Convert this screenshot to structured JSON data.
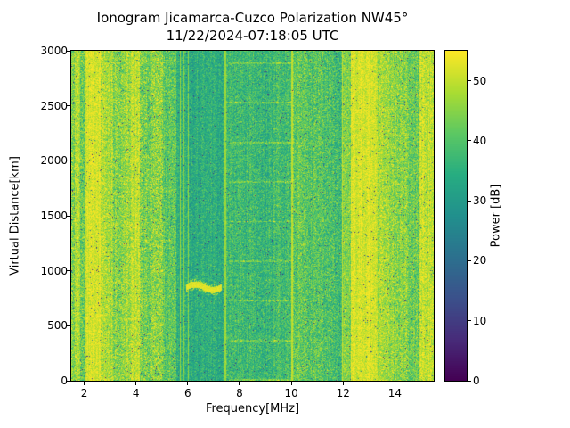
{
  "chart_data": {
    "type": "heatmap",
    "title": "Ionogram Jicamarca-Cuzco Polarization NW45°",
    "subtitle": "11/22/2024-07:18:05 UTC",
    "xlabel": "Frequency[MHz]",
    "ylabel": "Virtual Distance[km]",
    "xlim": [
      1.5,
      15.5
    ],
    "ylim": [
      0,
      3000
    ],
    "xticks": [
      2,
      4,
      6,
      8,
      10,
      12,
      14
    ],
    "yticks": [
      0,
      500,
      1000,
      1500,
      2000,
      2500,
      3000
    ],
    "grid": false,
    "colorbar": {
      "label": "Power [dB]",
      "min": 0,
      "max": 55,
      "ticks": [
        0,
        10,
        20,
        30,
        40,
        50
      ],
      "colormap": "viridis",
      "position": "right"
    },
    "bands": [
      {
        "f0": 1.5,
        "f1": 1.65,
        "mean": 44,
        "std": 5
      },
      {
        "f0": 1.65,
        "f1": 1.85,
        "mean": 48,
        "std": 4
      },
      {
        "f0": 1.85,
        "f1": 2.05,
        "mean": 43,
        "std": 5
      },
      {
        "f0": 2.05,
        "f1": 2.65,
        "mean": 52,
        "std": 2.5
      },
      {
        "f0": 2.65,
        "f1": 3.1,
        "mean": 48,
        "std": 4
      },
      {
        "f0": 3.1,
        "f1": 3.45,
        "mean": 45,
        "std": 5
      },
      {
        "f0": 3.45,
        "f1": 3.8,
        "mean": 47,
        "std": 4.5
      },
      {
        "f0": 3.8,
        "f1": 4.15,
        "mean": 50,
        "std": 3.5
      },
      {
        "f0": 4.15,
        "f1": 4.6,
        "mean": 43,
        "std": 5
      },
      {
        "f0": 4.6,
        "f1": 5.05,
        "mean": 45,
        "std": 5
      },
      {
        "f0": 5.05,
        "f1": 5.55,
        "mean": 41,
        "std": 4.5
      },
      {
        "f0": 5.55,
        "f1": 7.35,
        "mean": 34.5,
        "std": 3.5
      },
      {
        "f0": 7.35,
        "f1": 7.6,
        "mean": 37,
        "std": 4
      },
      {
        "f0": 7.6,
        "f1": 8.6,
        "mean": 37.5,
        "std": 4
      },
      {
        "f0": 8.6,
        "f1": 9.3,
        "mean": 36.5,
        "std": 4
      },
      {
        "f0": 9.3,
        "f1": 10.0,
        "mean": 38,
        "std": 4
      },
      {
        "f0": 10.0,
        "f1": 10.6,
        "mean": 42,
        "std": 4.5
      },
      {
        "f0": 10.6,
        "f1": 11.3,
        "mean": 40,
        "std": 4.5
      },
      {
        "f0": 11.3,
        "f1": 11.95,
        "mean": 39,
        "std": 4.5
      },
      {
        "f0": 11.95,
        "f1": 12.3,
        "mean": 44,
        "std": 4
      },
      {
        "f0": 12.3,
        "f1": 13.35,
        "mean": 52,
        "std": 2.5
      },
      {
        "f0": 13.35,
        "f1": 13.95,
        "mean": 47,
        "std": 4
      },
      {
        "f0": 13.95,
        "f1": 14.5,
        "mean": 44.5,
        "std": 4.5
      },
      {
        "f0": 14.5,
        "f1": 14.95,
        "mean": 43,
        "std": 4.5
      },
      {
        "f0": 14.95,
        "f1": 15.5,
        "mean": 50,
        "std": 3.5
      }
    ],
    "vlines": [
      {
        "f": 5.72,
        "w": 0.05,
        "power": 47
      },
      {
        "f": 5.86,
        "w": 0.05,
        "power": 46
      },
      {
        "f": 6.02,
        "w": 0.04,
        "power": 46
      },
      {
        "f": 7.45,
        "w": 0.05,
        "power": 47
      },
      {
        "f": 10.03,
        "w": 0.09,
        "power": 50
      },
      {
        "f": 11.97,
        "w": 0.06,
        "power": 50
      }
    ],
    "hline_artifacts": {
      "f0": 7.6,
      "f1": 10.0,
      "spacing_km": 360,
      "thickness_km": 14,
      "power_boost": 6
    },
    "echo_trace": {
      "f_start": 5.95,
      "f_end": 7.3,
      "range_km": 850,
      "amplitude_km": 25,
      "power": 54
    },
    "speckle": {
      "probability": 0.012,
      "power_min": 4,
      "power_max": 28
    }
  }
}
